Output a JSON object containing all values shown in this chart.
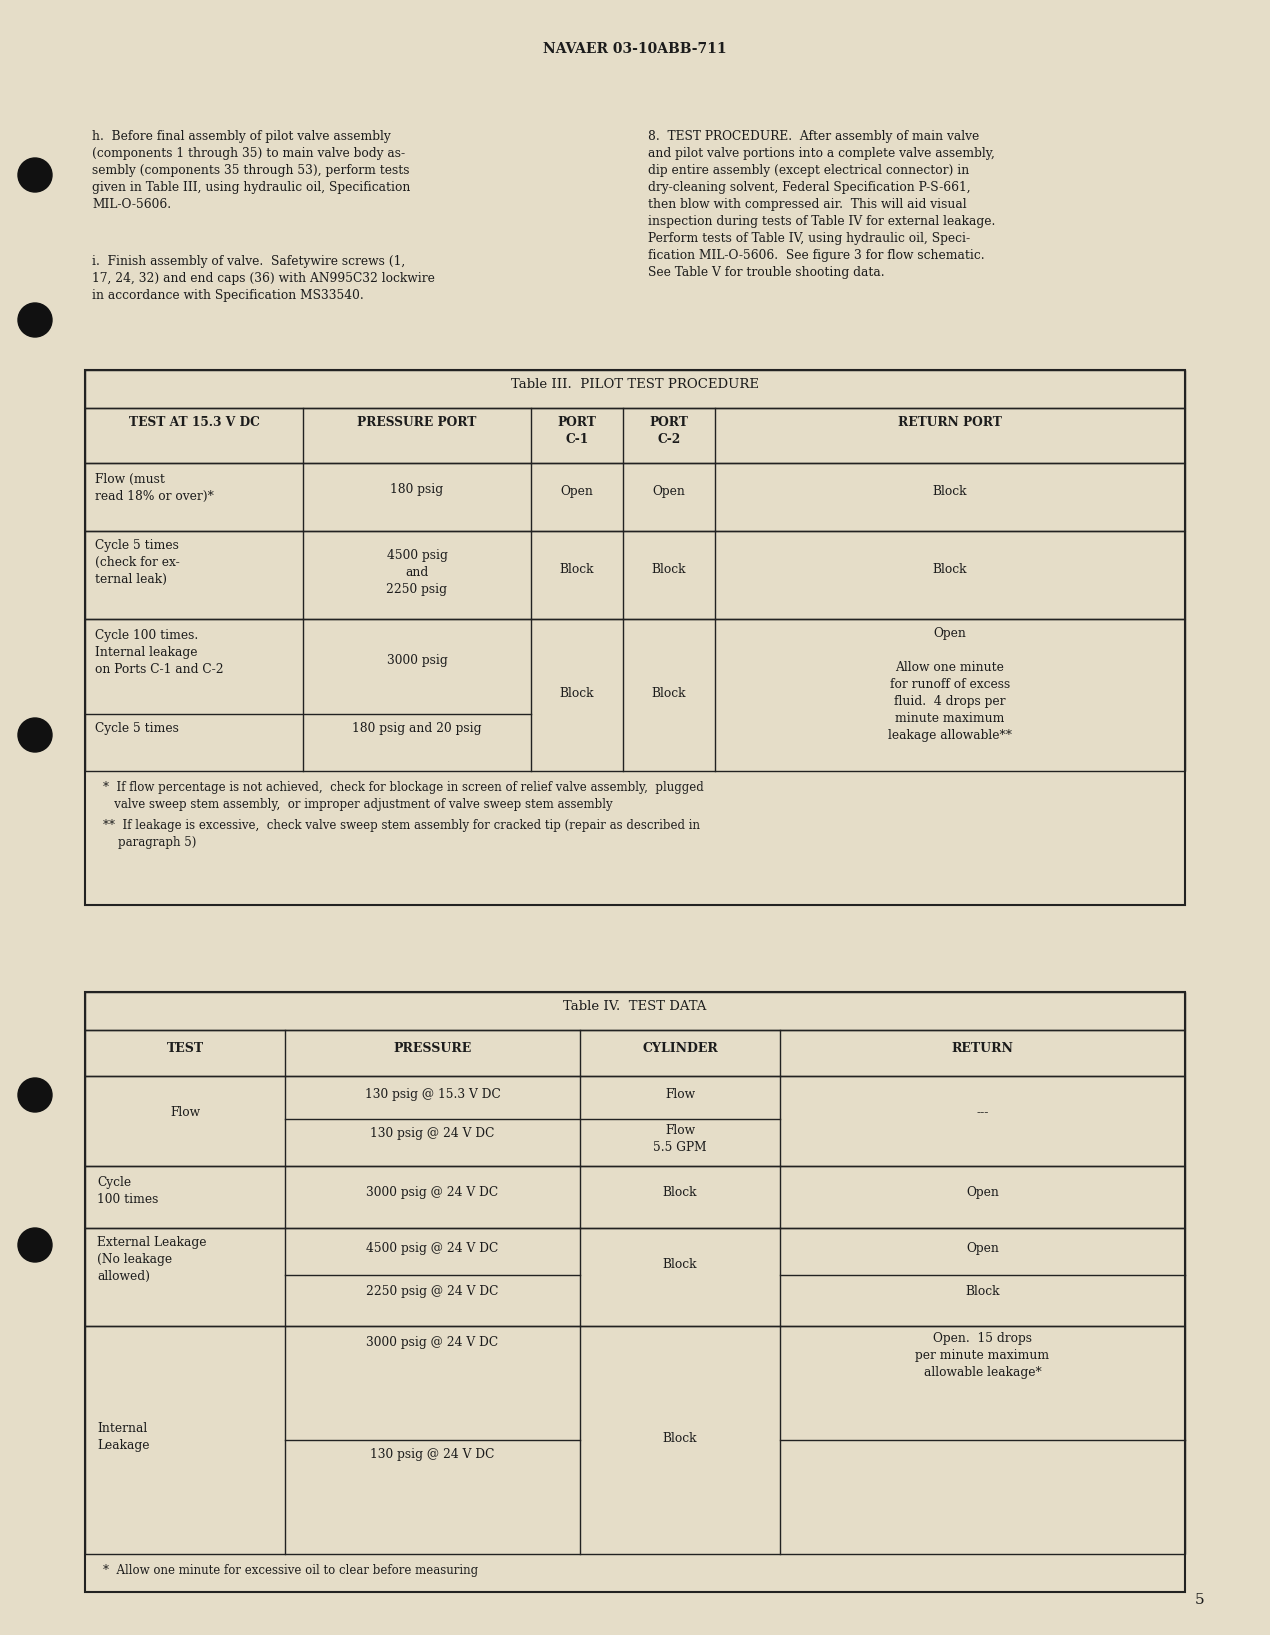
{
  "bg_color": "#e5ddc8",
  "page_num": "5",
  "header": "NAVAER 03-10ABB-711",
  "para_h": "h.  Before final assembly of pilot valve assembly\n(components 1 through 35) to main valve body as-\nsembly (components 35 through 53), perform tests\ngiven in Table III, using hydraulic oil, Specification\nMIL-O-5606.",
  "para_i": "i.  Finish assembly of valve.  Safetywire screws (1,\n17, 24, 32) and end caps (36) with AN995C32 lockwire\nin accordance with Specification MS33540.",
  "para_8": "8.  TEST PROCEDURE.  After assembly of main valve\nand pilot valve portions into a complete valve assembly,\ndip entire assembly (except electrical connector) in\ndry-cleaning solvent, Federal Specification P-S-661,\nthen blow with compressed air.  This will aid visual\ninspection during tests of Table IV for external leakage.\nPerform tests of Table IV, using hydraulic oil, Speci-\nfication MIL-O-5606.  See figure 3 for flow schematic.\nSee Table V for trouble shooting data.",
  "t3_title": "Table III.  PILOT TEST PROCEDURE",
  "t3_col_headers": [
    "TEST AT 15.3 V DC",
    "PRESSURE PORT",
    "PORT\nC-1",
    "PORT\nC-2",
    "RETURN PORT"
  ],
  "t3_fn1": "*  If flow percentage is not achieved,  check for blockage in screen of relief valve assembly,  plugged\n   valve sweep stem assembly,  or improper adjustment of valve sweep stem assembly",
  "t3_fn2": "**  If leakage is excessive,  check valve sweep stem assembly for cracked tip (repair as described in\n    paragraph 5)",
  "t4_title": "Table IV.  TEST DATA",
  "t4_col_headers": [
    "TEST",
    "PRESSURE",
    "CYLINDER",
    "RETURN"
  ],
  "t4_fn": "*  Allow one minute for excessive oil to clear before measuring"
}
